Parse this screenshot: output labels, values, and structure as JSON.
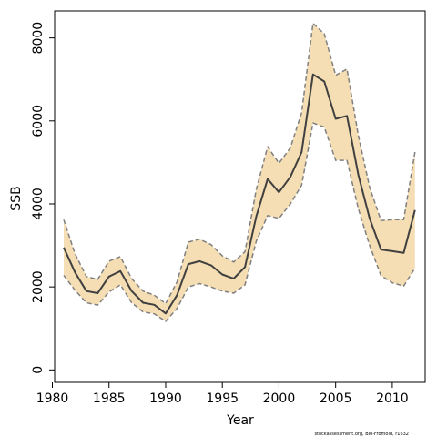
{
  "chart_data": {
    "type": "line",
    "title": "",
    "xlabel": "Year",
    "ylabel": "SSB",
    "xlim": [
      1980.2,
      2012.9
    ],
    "ylim": [
      -300,
      8650
    ],
    "x_ticks": [
      1980,
      1985,
      1990,
      1995,
      2000,
      2005,
      2010
    ],
    "y_ticks": [
      0,
      2000,
      4000,
      6000,
      8000
    ],
    "grid": false,
    "legend": "none",
    "footnote": "stockassessment.org, BW-Fromold, r1632",
    "colors": {
      "band_fill": "#f5deb3",
      "band_edge": "#808080",
      "line": "#404040"
    },
    "x": [
      1981,
      1982,
      1983,
      1984,
      1985,
      1986,
      1987,
      1988,
      1989,
      1990,
      1991,
      1992,
      1993,
      1994,
      1995,
      1996,
      1997,
      1998,
      1999,
      2000,
      2001,
      2002,
      2003,
      2004,
      2005,
      2006,
      2007,
      2008,
      2009,
      2010,
      2011,
      2012
    ],
    "series": [
      {
        "role": "estimate",
        "values": [
          2950,
          2350,
          1900,
          1850,
          2250,
          2380,
          1900,
          1620,
          1570,
          1360,
          1800,
          2550,
          2620,
          2520,
          2300,
          2200,
          2480,
          3700,
          4600,
          4280,
          4650,
          5250,
          7120,
          6950,
          6050,
          6120,
          4700,
          3650,
          2900,
          2860,
          2820,
          3850
        ]
      },
      {
        "role": "upper",
        "values": [
          3620,
          2800,
          2250,
          2180,
          2620,
          2730,
          2200,
          1900,
          1800,
          1600,
          2120,
          3080,
          3150,
          3020,
          2750,
          2600,
          2850,
          4350,
          5380,
          4980,
          5350,
          6200,
          8350,
          8100,
          7100,
          7250,
          5650,
          4400,
          3600,
          3620,
          3620,
          5250
        ]
      },
      {
        "role": "lower",
        "values": [
          2280,
          1920,
          1620,
          1560,
          1880,
          2050,
          1620,
          1400,
          1350,
          1170,
          1480,
          2000,
          2080,
          2000,
          1900,
          1850,
          2050,
          3100,
          3720,
          3650,
          4000,
          4450,
          5950,
          5850,
          5050,
          5050,
          3880,
          3000,
          2270,
          2100,
          2020,
          2450
        ]
      }
    ]
  }
}
